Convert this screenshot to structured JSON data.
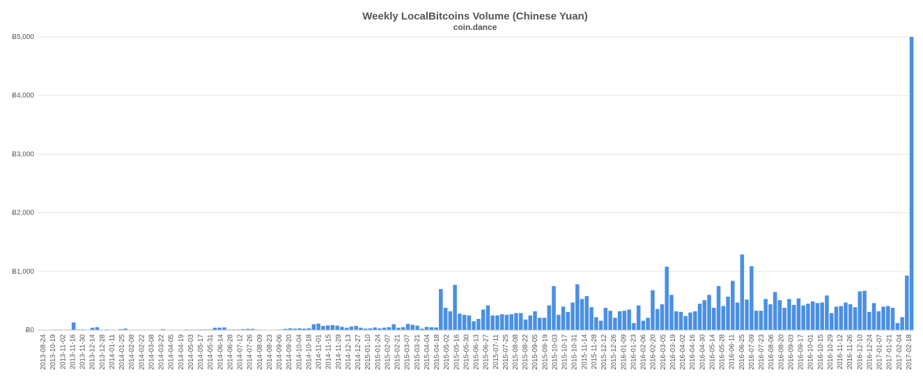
{
  "chart_data": {
    "type": "bar",
    "title": "Weekly LocalBitcoins Volume (Chinese Yuan)",
    "subtitle": "coin.dance",
    "xlabel": "",
    "ylabel": "",
    "ylim": [
      0,
      5000
    ],
    "yticks": [
      "Ƀ0",
      "Ƀ1,000",
      "Ƀ2,000",
      "Ƀ3,000",
      "Ƀ4,000",
      "Ƀ5,000"
    ],
    "ytick_values": [
      0,
      1000,
      2000,
      3000,
      4000,
      5000
    ],
    "xtick_labels": [
      "2013-08-24",
      "2013-10-19",
      "2013-11-02",
      "2013-11-16",
      "2013-11-30",
      "2013-12-14",
      "2013-12-28",
      "2014-01-11",
      "2014-01-25",
      "2014-02-08",
      "2014-02-22",
      "2014-03-08",
      "2014-03-22",
      "2014-04-05",
      "2014-04-19",
      "2014-05-03",
      "2014-05-17",
      "2014-05-31",
      "2014-06-14",
      "2014-06-28",
      "2014-07-12",
      "2014-07-26",
      "2014-08-09",
      "2014-08-23",
      "2014-09-06",
      "2014-09-20",
      "2014-10-04",
      "2014-10-18",
      "2014-11-01",
      "2014-11-15",
      "2014-11-29",
      "2014-12-13",
      "2014-12-27",
      "2015-01-10",
      "2015-01-24",
      "2015-02-07",
      "2015-02-21",
      "2015-03-07",
      "2015-03-21",
      "2015-04-04",
      "2015-04-18",
      "2015-05-02",
      "2015-05-16",
      "2015-05-30",
      "2015-06-13",
      "2015-06-27",
      "2015-07-11",
      "2015-07-25",
      "2015-08-08",
      "2015-08-22",
      "2015-09-05",
      "2015-09-19",
      "2015-10-03",
      "2015-10-17",
      "2015-10-31",
      "2015-11-14",
      "2015-11-28",
      "2015-12-12",
      "2015-12-26",
      "2016-01-09",
      "2016-01-23",
      "2016-02-06",
      "2016-02-20",
      "2016-03-05",
      "2016-03-19",
      "2016-04-02",
      "2016-04-16",
      "2016-04-30",
      "2016-05-14",
      "2016-05-28",
      "2016-06-11",
      "2016-06-25",
      "2016-07-09",
      "2016-07-23",
      "2016-08-06",
      "2016-08-20",
      "2016-09-03",
      "2016-09-17",
      "2016-10-01",
      "2016-10-15",
      "2016-10-29",
      "2016-11-12",
      "2016-11-26",
      "2016-12-10",
      "2016-12-24",
      "2017-01-07",
      "2017-01-21",
      "2017-02-04",
      "2017-02-18"
    ],
    "values": [
      0,
      0,
      0,
      8,
      8,
      0,
      8,
      130,
      10,
      10,
      0,
      40,
      50,
      0,
      10,
      0,
      5,
      15,
      25,
      0,
      0,
      0,
      5,
      5,
      0,
      5,
      15,
      5,
      0,
      5,
      0,
      10,
      8,
      8,
      10,
      10,
      10,
      40,
      40,
      45,
      10,
      10,
      10,
      15,
      20,
      20,
      8,
      5,
      5,
      5,
      5,
      10,
      20,
      30,
      25,
      30,
      25,
      30,
      100,
      110,
      70,
      80,
      85,
      75,
      55,
      40,
      60,
      70,
      40,
      25,
      30,
      45,
      30,
      40,
      50,
      100,
      40,
      50,
      105,
      90,
      75,
      25,
      55,
      50,
      45,
      700,
      380,
      320,
      770,
      280,
      260,
      250,
      150,
      190,
      350,
      420,
      250,
      250,
      270,
      260,
      270,
      290,
      290,
      180,
      250,
      320,
      210,
      210,
      420,
      750,
      260,
      400,
      310,
      470,
      780,
      530,
      580,
      390,
      220,
      160,
      380,
      330,
      210,
      320,
      330,
      350,
      120,
      420,
      160,
      210,
      680,
      360,
      440,
      1080,
      600,
      320,
      310,
      240,
      300,
      320,
      450,
      510,
      600,
      380,
      750,
      410,
      570,
      840,
      470,
      1290,
      520,
      1090,
      330,
      330,
      530,
      440,
      650,
      510,
      380,
      530,
      430,
      540,
      420,
      450,
      490,
      460,
      470,
      590,
      290,
      400,
      410,
      470,
      440,
      390,
      660,
      670,
      310,
      460,
      320,
      400,
      410,
      380,
      120,
      220,
      930,
      5000
    ]
  }
}
